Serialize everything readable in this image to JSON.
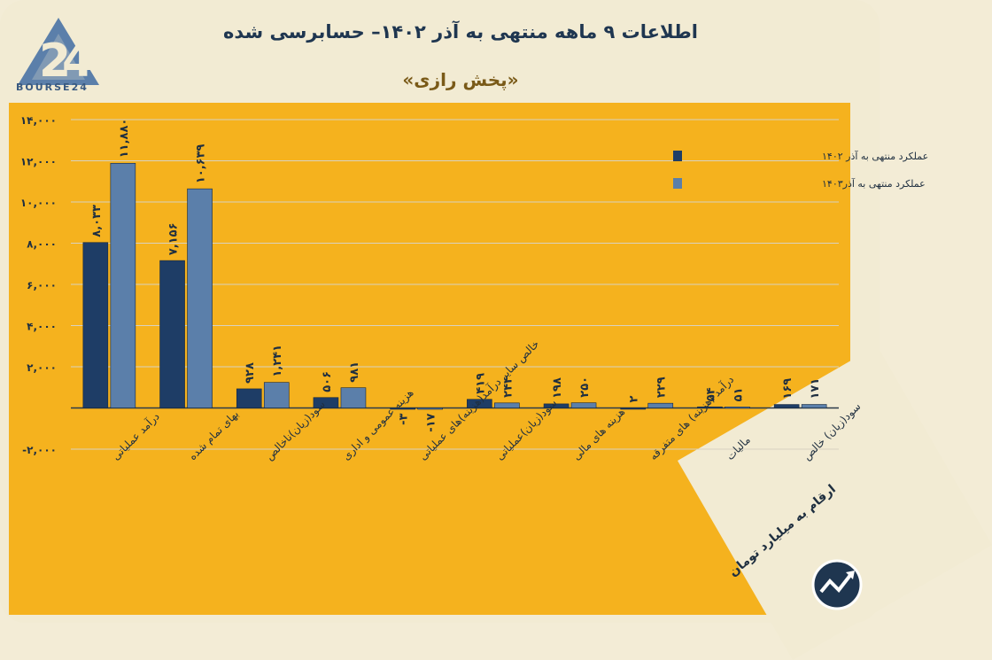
{
  "header": {
    "title": "اطلاعات ۹ ماهه منتهی به آذر ۱۴۰۲– حسابرسی شده",
    "subtitle": "«پخش رازی»",
    "logo_text": "BOURSE24",
    "units_note": "ارقام به میلیارد تومان"
  },
  "colors": {
    "series1": "#1e3d66",
    "series2": "#5b7faa",
    "background": "#f5b21e"
  },
  "chart_data": {
    "type": "bar",
    "title": "اطلاعات ۹ ماهه منتهی به آذر ۱۴۰۲– حسابرسی شده",
    "ylim": [
      -2000,
      14000
    ],
    "yticks": [
      -2000,
      0,
      2000,
      4000,
      6000,
      8000,
      10000,
      12000,
      14000
    ],
    "ytick_labels": [
      "-۲,۰۰۰",
      "",
      "۲,۰۰۰",
      "۴,۰۰۰",
      "۶,۰۰۰",
      "۸,۰۰۰",
      "۱۰,۰۰۰",
      "۱۲,۰۰۰",
      "۱۴,۰۰۰"
    ],
    "grid": true,
    "legend_position": "top-right",
    "categories": [
      "درآمد عملیاتی",
      "بهای تمام شده",
      "سود(زیان)ناخالص",
      "هزینه عمومی و اداری",
      "خالص سایر درآمد(هزینه)های عملیاتی",
      "سود(زیان)عملیاتی",
      "هزینه های مالی",
      "درآمد (هزینه) های متفرقه",
      "مالیات",
      "سود(زیان) خالص"
    ],
    "series": [
      {
        "name": "عملکرد منتهی به آذر ۱۴۰۲",
        "values": [
          8033,
          7156,
          928,
          506,
          -3,
          419,
          198,
          2,
          54,
          169
        ],
        "labels": [
          "۸,۰۳۳",
          "۷,۱۵۶",
          "۹۲۸",
          "۵۰۶",
          "-۳",
          "۴۱۹",
          "۱۹۸",
          "۲",
          "۵۴",
          "۱۶۹"
        ]
      },
      {
        "name": "عملکرد منتهی به آذر۱۴۰۳",
        "values": [
          11880,
          10639,
          1241,
          981,
          -17,
          244,
          250,
          229,
          51,
          171
        ],
        "labels": [
          "۱۱,۸۸۰",
          "۱۰,۶۳۹",
          "۱,۲۴۱",
          "۹۸۱",
          "-۱۷",
          "۲۴۴",
          "۲۵۰",
          "۲۲۹",
          "۵۱",
          "۱۷۱"
        ]
      }
    ]
  }
}
